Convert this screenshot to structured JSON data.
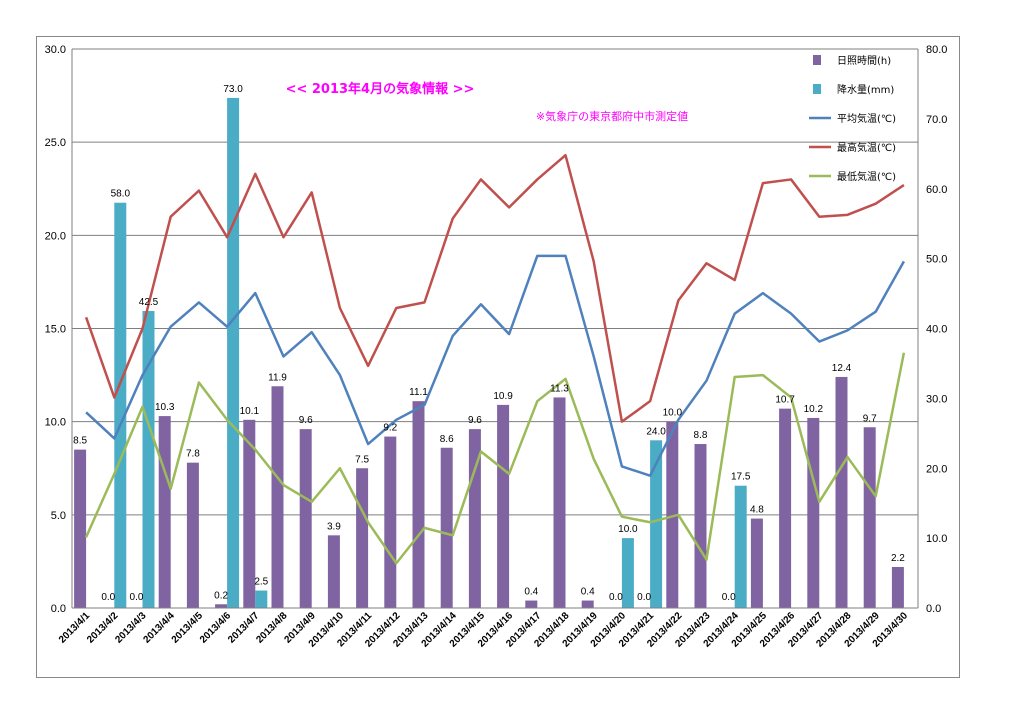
{
  "chart_data": {
    "type": "bar",
    "title": "<< 2013年4月の気象情報 >>",
    "subtitle": "※気象庁の東京都府中市測定値",
    "colors": {
      "sunshine": "#8064A2",
      "rain": "#4BACC6",
      "avg": "#4F81BD",
      "max": "#C0504D",
      "min": "#9BBB59",
      "title": "#FF00FF"
    },
    "left_axis": {
      "ylim": [
        0,
        30
      ],
      "ticks": [
        "0.0",
        "5.0",
        "10.0",
        "15.0",
        "20.0",
        "25.0",
        "30.0"
      ]
    },
    "right_axis": {
      "ylim": [
        0,
        80
      ],
      "ticks": [
        "0.0",
        "10.0",
        "20.0",
        "30.0",
        "40.0",
        "50.0",
        "60.0",
        "70.0",
        "80.0"
      ]
    },
    "grid": true,
    "legend_position": "top-right",
    "categories": [
      "2013/4/1",
      "2013/4/2",
      "2013/4/3",
      "2013/4/4",
      "2013/4/5",
      "2013/4/6",
      "2013/4/7",
      "2013/4/8",
      "2013/4/9",
      "2013/4/10",
      "2013/4/11",
      "2013/4/12",
      "2013/4/13",
      "2013/4/14",
      "2013/4/15",
      "2013/4/16",
      "2013/4/17",
      "2013/4/18",
      "2013/4/19",
      "2013/4/20",
      "2013/4/21",
      "2013/4/22",
      "2013/4/23",
      "2013/4/24",
      "2013/4/25",
      "2013/4/26",
      "2013/4/27",
      "2013/4/28",
      "2013/4/29",
      "2013/4/30"
    ],
    "series": [
      {
        "name": "日照時間(h)",
        "type": "bar",
        "axis": "left",
        "values": [
          8.5,
          0.0,
          0.0,
          10.3,
          7.8,
          0.2,
          10.1,
          11.9,
          9.6,
          3.9,
          7.5,
          9.2,
          11.1,
          8.6,
          9.6,
          10.9,
          0.4,
          11.3,
          0.4,
          0.0,
          0.0,
          10.0,
          8.8,
          0.0,
          4.8,
          10.7,
          10.2,
          12.4,
          9.7,
          2.2
        ],
        "labels": [
          "8.5",
          "0.0",
          "0.0",
          "10.3",
          "7.8",
          "0.2",
          "10.1",
          "11.9",
          "9.6",
          "3.9",
          "7.5",
          "9.2",
          "11.1",
          "8.6",
          "9.6",
          "10.9",
          "0.4",
          "11.3",
          "0.4",
          "0.0",
          "0.0",
          "10.0",
          "8.8",
          "0.0",
          "4.8",
          "10.7",
          "10.2",
          "12.4",
          "9.7",
          "2.2"
        ]
      },
      {
        "name": "降水量(mm)",
        "type": "bar",
        "axis": "right",
        "values": [
          0,
          58.0,
          42.5,
          0,
          0,
          73.0,
          2.5,
          0,
          0,
          0,
          0,
          0,
          0,
          0,
          0,
          0,
          0,
          0,
          0,
          10.0,
          24.0,
          0,
          0,
          17.5,
          0,
          0,
          0,
          0,
          0,
          0
        ],
        "labels": [
          "",
          "58.0",
          "42.5",
          "",
          "",
          "73.0",
          "2.5",
          "",
          "",
          "",
          "",
          "",
          "",
          "",
          "",
          "",
          "",
          "",
          "",
          "10.0",
          "24.0",
          "",
          "",
          "17.5",
          "",
          "",
          "",
          "",
          "",
          ""
        ]
      },
      {
        "name": "平均気温(℃)",
        "type": "line",
        "axis": "left",
        "values": [
          10.5,
          9.1,
          12.5,
          15.1,
          16.4,
          15.1,
          16.9,
          13.5,
          14.8,
          12.5,
          8.8,
          10.1,
          10.9,
          14.6,
          16.3,
          14.7,
          18.9,
          18.9,
          13.5,
          7.6,
          7.1,
          10.1,
          12.2,
          15.8,
          16.9,
          15.8,
          14.3,
          14.9,
          15.9,
          18.6
        ]
      },
      {
        "name": "最高気温(℃)",
        "type": "line",
        "axis": "left",
        "values": [
          15.6,
          11.3,
          15.0,
          21.0,
          22.4,
          19.9,
          23.3,
          19.9,
          22.3,
          16.1,
          13.0,
          16.1,
          16.4,
          20.9,
          23.0,
          21.5,
          23.0,
          24.3,
          18.6,
          10.0,
          11.1,
          16.5,
          18.5,
          17.6,
          22.8,
          23.0,
          21.0,
          21.1,
          21.7,
          22.7
        ]
      },
      {
        "name": "最低気温(℃)",
        "type": "line",
        "axis": "left",
        "values": [
          3.8,
          7.2,
          10.8,
          6.4,
          12.1,
          10.1,
          8.5,
          6.6,
          5.7,
          7.5,
          4.6,
          2.4,
          4.3,
          3.9,
          8.4,
          7.2,
          11.1,
          12.3,
          8.0,
          4.9,
          4.6,
          5.0,
          2.6,
          12.4,
          12.5,
          11.3,
          5.7,
          8.1,
          6.0,
          13.7
        ]
      }
    ]
  }
}
